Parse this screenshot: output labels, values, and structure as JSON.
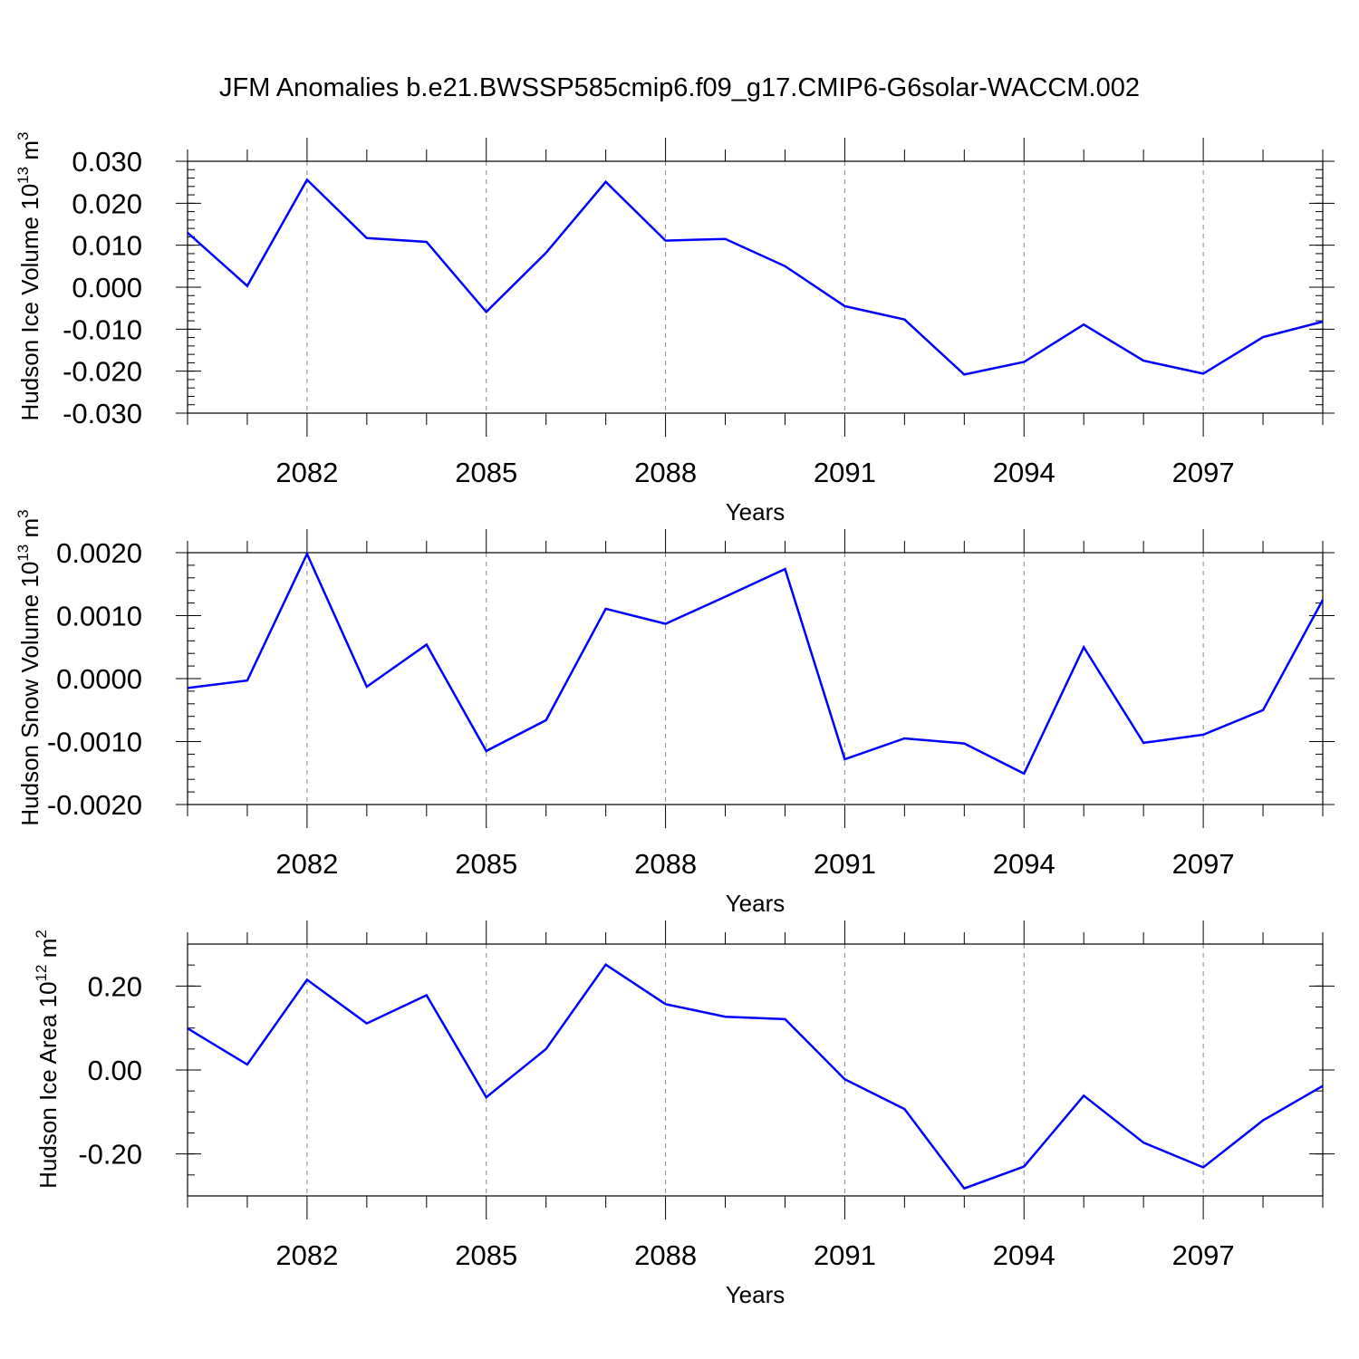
{
  "title": "JFM Anomalies b.e21.BWSSP585cmip6.f09_g17.CMIP6-G6solar-WACCM.002",
  "colors": {
    "line": "#0000ff",
    "axis": "#000000",
    "grid": "#888888"
  },
  "chart_data": [
    {
      "type": "line",
      "ylabel": "Hudson Ice Volume 10",
      "ylabel_exp": "13",
      "ylabel_unit": " m",
      "ylabel_unit_exp": "3",
      "xlabel": "Years",
      "xlim": [
        2080,
        2099
      ],
      "ylim": [
        -0.03,
        0.03
      ],
      "yticks": [
        -0.03,
        -0.02,
        -0.01,
        0.0,
        0.01,
        0.02,
        0.03
      ],
      "ytick_labels": [
        "-0.030",
        "-0.020",
        "-0.010",
        "0.000",
        "0.010",
        "0.020",
        "0.030"
      ],
      "yminor_step": 0.002,
      "xticks": [
        2082,
        2085,
        2088,
        2091,
        2094,
        2097
      ],
      "xtick_labels": [
        "2082",
        "2085",
        "2088",
        "2091",
        "2094",
        "2097"
      ],
      "grid": "vertical dashed at major x ticks",
      "x": [
        2080,
        2081,
        2082,
        2083,
        2084,
        2085,
        2086,
        2087,
        2088,
        2089,
        2090,
        2091,
        2092,
        2093,
        2094,
        2095,
        2096,
        2097,
        2098,
        2099
      ],
      "series": [
        {
          "values": [
            0.013,
            0.0003,
            0.0256,
            0.0117,
            0.0108,
            -0.0059,
            0.0082,
            0.0251,
            0.0111,
            0.0115,
            0.005,
            -0.0045,
            -0.0077,
            -0.0208,
            -0.0178,
            -0.0089,
            -0.0175,
            -0.0206,
            -0.0119,
            -0.0082
          ]
        }
      ]
    },
    {
      "type": "line",
      "ylabel": "Hudson Snow Volume 10",
      "ylabel_exp": "13",
      "ylabel_unit": " m",
      "ylabel_unit_exp": "3",
      "xlabel": "Years",
      "xlim": [
        2080,
        2099
      ],
      "ylim": [
        -0.002,
        0.002
      ],
      "yticks": [
        -0.002,
        -0.001,
        0.0,
        0.001,
        0.002
      ],
      "ytick_labels": [
        "-0.0020",
        "-0.0010",
        "0.0000",
        "0.0010",
        "0.0020"
      ],
      "yminor_step": 0.0002,
      "xticks": [
        2082,
        2085,
        2088,
        2091,
        2094,
        2097
      ],
      "xtick_labels": [
        "2082",
        "2085",
        "2088",
        "2091",
        "2094",
        "2097"
      ],
      "grid": "vertical dashed at major x ticks",
      "x": [
        2080,
        2081,
        2082,
        2083,
        2084,
        2085,
        2086,
        2087,
        2088,
        2089,
        2090,
        2091,
        2092,
        2093,
        2094,
        2095,
        2096,
        2097,
        2098,
        2099
      ],
      "series": [
        {
          "values": [
            -0.00015,
            -3e-05,
            0.00198,
            -0.00013,
            0.00054,
            -0.00115,
            -0.00066,
            0.00111,
            0.00087,
            0.0013,
            0.00174,
            -0.00128,
            -0.00095,
            -0.00103,
            -0.00151,
            0.0005,
            -0.00102,
            -0.00089,
            -0.0005,
            0.00125
          ]
        }
      ]
    },
    {
      "type": "line",
      "ylabel": "Hudson Ice Area 10",
      "ylabel_exp": "12",
      "ylabel_unit": " m",
      "ylabel_unit_exp": "2",
      "xlabel": "Years",
      "xlim": [
        2080,
        2099
      ],
      "ylim": [
        -0.3,
        0.3
      ],
      "yticks": [
        -0.2,
        0.0,
        0.2
      ],
      "ytick_labels": [
        "-0.20",
        "0.00",
        "0.20"
      ],
      "yminor_step": 0.05,
      "xticks": [
        2082,
        2085,
        2088,
        2091,
        2094,
        2097
      ],
      "xtick_labels": [
        "2082",
        "2085",
        "2088",
        "2091",
        "2094",
        "2097"
      ],
      "grid": "vertical dashed at major x ticks",
      "x": [
        2080,
        2081,
        2082,
        2083,
        2084,
        2085,
        2086,
        2087,
        2088,
        2089,
        2090,
        2091,
        2092,
        2093,
        2094,
        2095,
        2096,
        2097,
        2098,
        2099
      ],
      "series": [
        {
          "values": [
            0.099,
            0.013,
            0.215,
            0.111,
            0.178,
            -0.065,
            0.05,
            0.251,
            0.157,
            0.127,
            0.121,
            -0.022,
            -0.093,
            -0.282,
            -0.23,
            -0.061,
            -0.173,
            -0.232,
            -0.12,
            -0.038
          ]
        }
      ]
    }
  ]
}
